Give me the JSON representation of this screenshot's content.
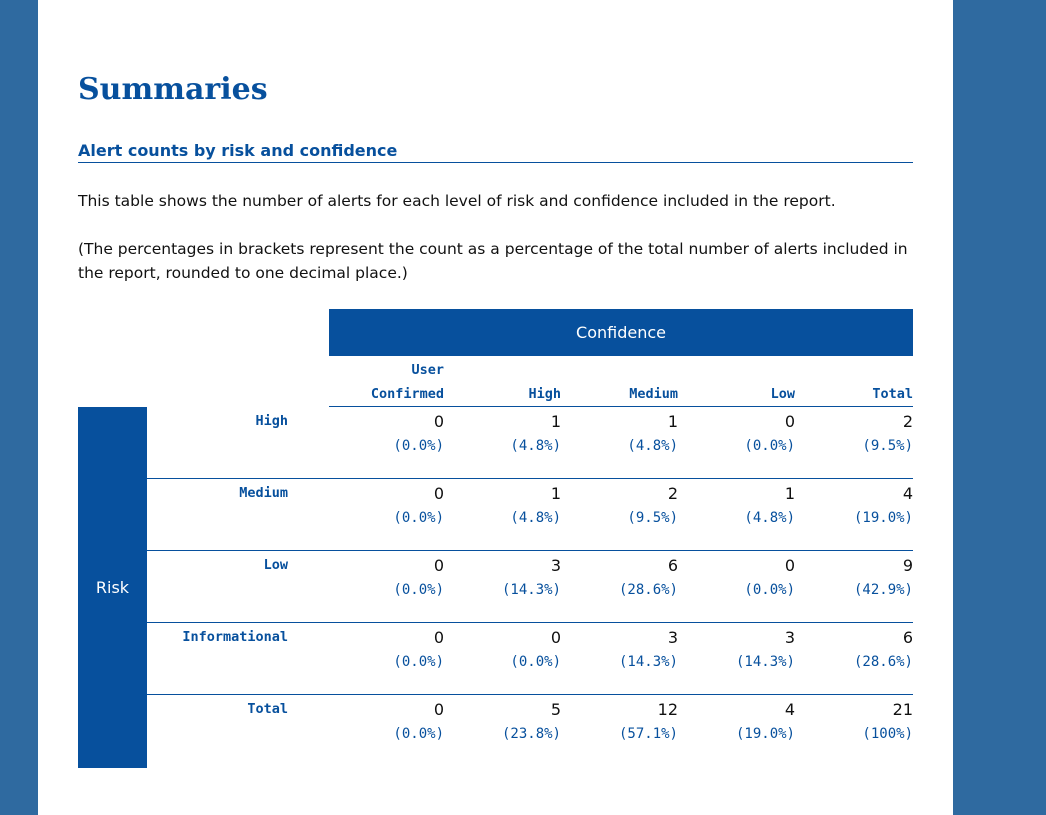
{
  "page": {
    "title": "Summaries",
    "section_title": "Alert counts by risk and confidence",
    "para1": "This table shows the number of alerts for each level of risk and confidence included in the report.",
    "para2": "(The percentages in brackets represent the count as a percentage of the total number of alerts included in the report, rounded to one decimal place.)"
  },
  "table": {
    "confidence_label": "Confidence",
    "risk_label": "Risk",
    "columns": [
      {
        "l1": "User",
        "l2": "Confirmed"
      },
      {
        "l1": "",
        "l2": "High"
      },
      {
        "l1": "",
        "l2": "Medium"
      },
      {
        "l1": "",
        "l2": "Low"
      },
      {
        "l1": "",
        "l2": "Total"
      }
    ],
    "rows": [
      {
        "label": "High",
        "cells": [
          {
            "count": "0",
            "pct": "(0.0%)"
          },
          {
            "count": "1",
            "pct": "(4.8%)"
          },
          {
            "count": "1",
            "pct": "(4.8%)"
          },
          {
            "count": "0",
            "pct": "(0.0%)"
          },
          {
            "count": "2",
            "pct": "(9.5%)"
          }
        ]
      },
      {
        "label": "Medium",
        "cells": [
          {
            "count": "0",
            "pct": "(0.0%)"
          },
          {
            "count": "1",
            "pct": "(4.8%)"
          },
          {
            "count": "2",
            "pct": "(9.5%)"
          },
          {
            "count": "1",
            "pct": "(4.8%)"
          },
          {
            "count": "4",
            "pct": "(19.0%)"
          }
        ]
      },
      {
        "label": "Low",
        "cells": [
          {
            "count": "0",
            "pct": "(0.0%)"
          },
          {
            "count": "3",
            "pct": "(14.3%)"
          },
          {
            "count": "6",
            "pct": "(28.6%)"
          },
          {
            "count": "0",
            "pct": "(0.0%)"
          },
          {
            "count": "9",
            "pct": "(42.9%)"
          }
        ]
      },
      {
        "label": "Informational",
        "cells": [
          {
            "count": "0",
            "pct": "(0.0%)"
          },
          {
            "count": "0",
            "pct": "(0.0%)"
          },
          {
            "count": "3",
            "pct": "(14.3%)"
          },
          {
            "count": "3",
            "pct": "(14.3%)"
          },
          {
            "count": "6",
            "pct": "(28.6%)"
          }
        ]
      },
      {
        "label": "Total",
        "cells": [
          {
            "count": "0",
            "pct": "(0.0%)"
          },
          {
            "count": "5",
            "pct": "(23.8%)"
          },
          {
            "count": "12",
            "pct": "(57.1%)"
          },
          {
            "count": "4",
            "pct": "(19.0%)"
          },
          {
            "count": "21",
            "pct": "(100%)"
          }
        ]
      }
    ]
  }
}
